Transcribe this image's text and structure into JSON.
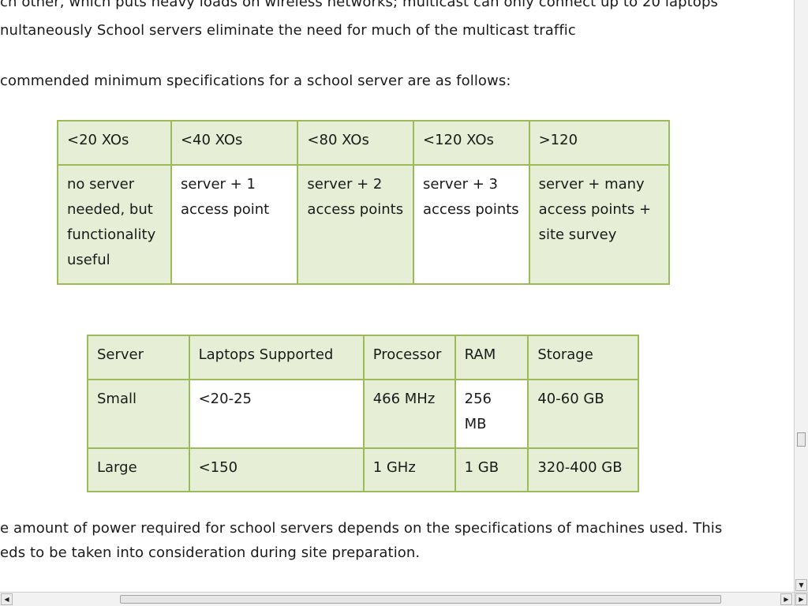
{
  "document": {
    "paragraph1_line1": "ch other, which puts heavy loads on wireless networks; multicast can only connect up to 20 laptops",
    "paragraph1_line2": "nultaneously School servers eliminate the need for much of the multicast traffic",
    "paragraph2": "commended minimum specifications for a school server are as follows:",
    "paragraph3_line1": "e amount of power required for school servers depends on the specifications of machines used. This",
    "paragraph3_line2": "eds to be taken into consideration   during site preparation."
  },
  "table1": {
    "headers": [
      "<20 XOs",
      "<40 XOs",
      "<80 XOs",
      "<120 XOs",
      ">120"
    ],
    "row": [
      "no server\nneeded, but\nfunctionality\nuseful",
      "server + 1\naccess point",
      "server + 2\naccess points",
      "server + 3\naccess points",
      "server + many\naccess points +\nsite survey"
    ]
  },
  "table2": {
    "headers": [
      "Server",
      "Laptops Supported",
      "Processor",
      "RAM",
      "Storage"
    ],
    "rows": [
      [
        "Small",
        "<20-25",
        "466 MHz",
        "256\nMB",
        "40-60 GB"
      ],
      [
        "Large",
        "<150",
        "1 GHz",
        "1 GB",
        "320-400 GB"
      ]
    ]
  },
  "scrollbars": {
    "down_arrow": "▼",
    "left_arrow": "◀",
    "right_arrow": "▶"
  },
  "colors": {
    "table_border": "#9bbb59",
    "table_fill": "#e6eed6"
  }
}
